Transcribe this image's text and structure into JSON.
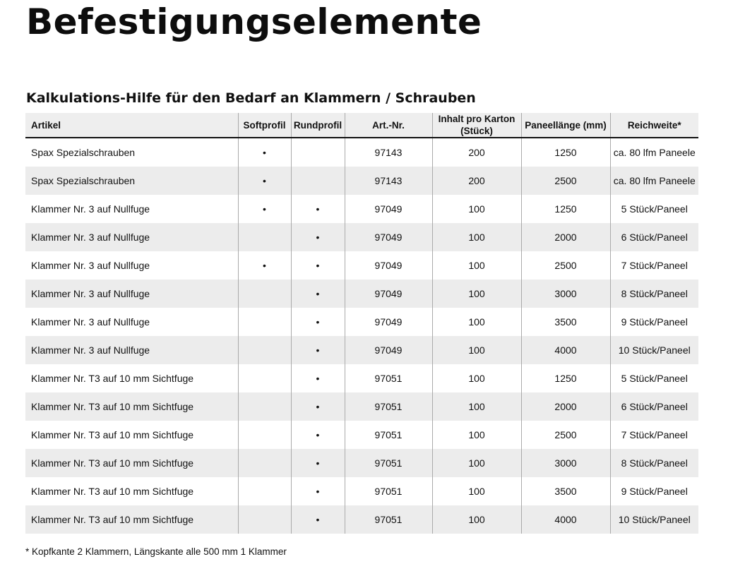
{
  "title": "Befestigungselemente",
  "subtitle": "Kalkulations-Hilfe für den Bedarf an Klammern / Schrauben",
  "table": {
    "headers": {
      "artikel": "Artikel",
      "softprofil": "Softprofil",
      "rundprofil": "Rundprofil",
      "artnr": "Art.-Nr.",
      "inhalt": "Inhalt pro Karton (Stück)",
      "paneellaenge": "Paneellänge (mm)",
      "reichweite": "Reichweite*"
    },
    "rows": [
      {
        "artikel": "Spax Spezialschrauben",
        "softprofil": "•",
        "rundprofil": "",
        "artnr": "97143",
        "inhalt": "200",
        "paneellaenge": "1250",
        "reichweite": "ca. 80 lfm Paneele"
      },
      {
        "artikel": "Spax Spezialschrauben",
        "softprofil": "•",
        "rundprofil": "",
        "artnr": "97143",
        "inhalt": "200",
        "paneellaenge": "2500",
        "reichweite": "ca. 80 lfm Paneele"
      },
      {
        "artikel": "Klammer Nr. 3 auf Nullfuge",
        "softprofil": "•",
        "rundprofil": "•",
        "artnr": "97049",
        "inhalt": "100",
        "paneellaenge": "1250",
        "reichweite": "5 Stück/Paneel"
      },
      {
        "artikel": "Klammer Nr. 3 auf Nullfuge",
        "softprofil": "",
        "rundprofil": "•",
        "artnr": "97049",
        "inhalt": "100",
        "paneellaenge": "2000",
        "reichweite": "6 Stück/Paneel"
      },
      {
        "artikel": "Klammer Nr. 3 auf Nullfuge",
        "softprofil": "•",
        "rundprofil": "•",
        "artnr": "97049",
        "inhalt": "100",
        "paneellaenge": "2500",
        "reichweite": "7 Stück/Paneel"
      },
      {
        "artikel": "Klammer Nr. 3 auf Nullfuge",
        "softprofil": "",
        "rundprofil": "•",
        "artnr": "97049",
        "inhalt": "100",
        "paneellaenge": "3000",
        "reichweite": "8 Stück/Paneel"
      },
      {
        "artikel": "Klammer Nr. 3 auf Nullfuge",
        "softprofil": "",
        "rundprofil": "•",
        "artnr": "97049",
        "inhalt": "100",
        "paneellaenge": "3500",
        "reichweite": "9 Stück/Paneel"
      },
      {
        "artikel": "Klammer Nr. 3 auf Nullfuge",
        "softprofil": "",
        "rundprofil": "•",
        "artnr": "97049",
        "inhalt": "100",
        "paneellaenge": "4000",
        "reichweite": "10 Stück/Paneel"
      },
      {
        "artikel": "Klammer Nr. T3 auf 10 mm Sichtfuge",
        "softprofil": "",
        "rundprofil": "•",
        "artnr": "97051",
        "inhalt": "100",
        "paneellaenge": "1250",
        "reichweite": "5 Stück/Paneel"
      },
      {
        "artikel": "Klammer Nr. T3 auf 10 mm Sichtfuge",
        "softprofil": "",
        "rundprofil": "•",
        "artnr": "97051",
        "inhalt": "100",
        "paneellaenge": "2000",
        "reichweite": "6 Stück/Paneel"
      },
      {
        "artikel": "Klammer Nr. T3 auf 10 mm Sichtfuge",
        "softprofil": "",
        "rundprofil": "•",
        "artnr": "97051",
        "inhalt": "100",
        "paneellaenge": "2500",
        "reichweite": "7 Stück/Paneel"
      },
      {
        "artikel": "Klammer Nr. T3 auf 10 mm Sichtfuge",
        "softprofil": "",
        "rundprofil": "•",
        "artnr": "97051",
        "inhalt": "100",
        "paneellaenge": "3000",
        "reichweite": "8 Stück/Paneel"
      },
      {
        "artikel": "Klammer Nr. T3 auf 10 mm Sichtfuge",
        "softprofil": "",
        "rundprofil": "•",
        "artnr": "97051",
        "inhalt": "100",
        "paneellaenge": "3500",
        "reichweite": "9 Stück/Paneel"
      },
      {
        "artikel": "Klammer Nr. T3 auf 10 mm Sichtfuge",
        "softprofil": "",
        "rundprofil": "•",
        "artnr": "97051",
        "inhalt": "100",
        "paneellaenge": "4000",
        "reichweite": "10 Stück/Paneel"
      }
    ]
  },
  "footnote": "* Kopfkante 2 Klammern, Längskante alle 500 mm 1 Klammer"
}
